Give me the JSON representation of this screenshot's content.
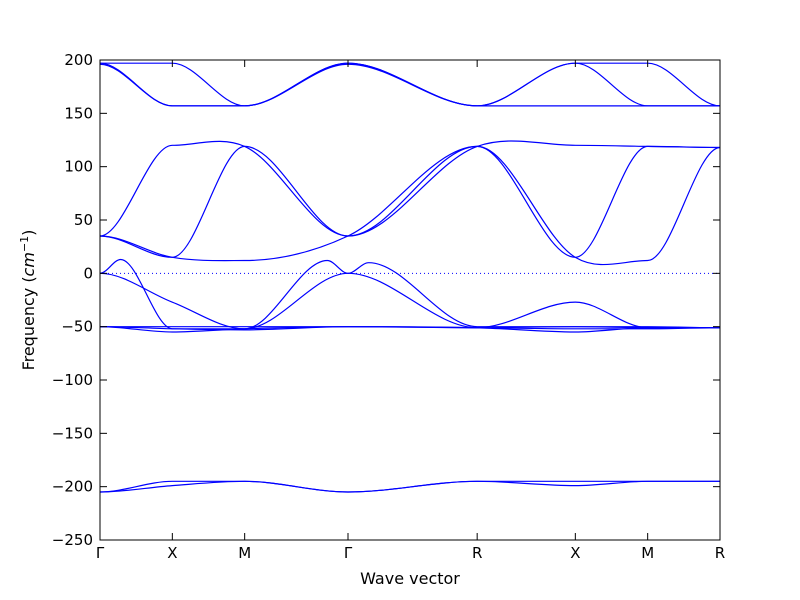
{
  "chart_data": {
    "type": "line",
    "xlabel": "Wave vector",
    "ylabel": "Frequency",
    "ylabel_unit": "cm",
    "ylabel_unit_exp": "−1",
    "ylim": [
      -250,
      200
    ],
    "yticks": [
      200,
      150,
      100,
      50,
      0,
      -50,
      -100,
      -150,
      -200,
      -250
    ],
    "xlim": [
      0,
      6.0
    ],
    "path_points": [
      {
        "label": "Γ",
        "x": 0.0
      },
      {
        "label": "X",
        "x": 0.7
      },
      {
        "label": "M",
        "x": 1.4
      },
      {
        "label": "Γ",
        "x": 2.4
      },
      {
        "label": "R",
        "x": 3.65
      },
      {
        "label": "X",
        "x": 4.6
      },
      {
        "label": "M",
        "x": 5.3
      },
      {
        "label": "R",
        "x": 6.0
      }
    ],
    "zero_line": true,
    "line_color": "#0000ff",
    "series": [
      {
        "x": [
          0.0,
          0.7,
          1.4,
          2.4,
          3.65,
          4.6,
          5.3,
          6.0
        ],
        "y": [
          197,
          197,
          157,
          197,
          157,
          197,
          197,
          157
        ]
      },
      {
        "x": [
          0.0,
          0.7,
          1.4,
          2.4,
          3.65,
          4.6,
          5.3,
          6.0
        ],
        "y": [
          197,
          157,
          157,
          197,
          157,
          197,
          157,
          157
        ]
      },
      {
        "x": [
          0.0,
          0.7,
          1.4,
          2.4,
          3.65,
          4.6,
          5.3,
          6.0
        ],
        "y": [
          196,
          157,
          157,
          196,
          157,
          157,
          157,
          157
        ]
      },
      {
        "x": [
          0.0,
          0.7,
          1.4,
          2.4,
          3.65,
          4.6,
          5.3,
          6.0
        ],
        "y": [
          35,
          120,
          119,
          35,
          119,
          120,
          119,
          118
        ]
      },
      {
        "x": [
          0.0,
          0.7,
          1.4,
          2.4,
          3.65,
          4.6,
          5.3,
          6.0
        ],
        "y": [
          35,
          15,
          119,
          35,
          119,
          15,
          119,
          118
        ]
      },
      {
        "x": [
          0.0,
          0.7,
          1.4,
          2.4,
          3.65,
          4.6,
          5.3,
          6.0
        ],
        "y": [
          35,
          15,
          12,
          35,
          119,
          15,
          12,
          118
        ]
      },
      {
        "x": [
          0.0,
          0.2,
          0.7,
          1.4,
          2.2,
          2.4,
          2.6,
          3.65,
          4.6,
          5.3,
          6.0
        ],
        "y": [
          0,
          13,
          -52,
          -52,
          12,
          0,
          10,
          -50,
          -50,
          -50,
          -51
        ]
      },
      {
        "x": [
          0.0,
          0.7,
          1.4,
          2.4,
          3.65,
          4.6,
          5.3,
          6.0
        ],
        "y": [
          0,
          -27,
          -52,
          0,
          -51,
          -27,
          -51,
          -51
        ]
      },
      {
        "x": [
          0.0,
          0.7,
          1.4,
          2.4,
          3.65,
          4.6,
          5.3,
          6.0
        ],
        "y": [
          -50,
          -50,
          -50,
          -50,
          -51,
          -50,
          -51,
          -51
        ]
      },
      {
        "x": [
          0.0,
          0.7,
          1.4,
          2.4,
          3.65,
          4.6,
          5.3,
          6.0
        ],
        "y": [
          -50,
          -55,
          -52,
          -50,
          -51,
          -55,
          -51,
          -51
        ]
      },
      {
        "x": [
          0.0,
          0.7,
          1.4,
          2.4,
          3.65,
          4.6,
          5.3,
          6.0
        ],
        "y": [
          -50,
          -52,
          -53,
          -50,
          -51,
          -52,
          -52,
          -51
        ]
      },
      {
        "x": [
          0.0,
          0.7,
          1.4,
          2.4,
          3.65,
          4.6,
          5.3,
          6.0
        ],
        "y": [
          -205,
          -199,
          -195,
          -205,
          -195,
          -199,
          -195,
          -195
        ]
      },
      {
        "x": [
          0.0,
          0.7,
          1.4,
          2.4,
          3.65,
          4.6,
          5.3,
          6.0
        ],
        "y": [
          -205,
          -195,
          -195,
          -205,
          -195,
          -195,
          -195,
          -195
        ]
      }
    ]
  }
}
